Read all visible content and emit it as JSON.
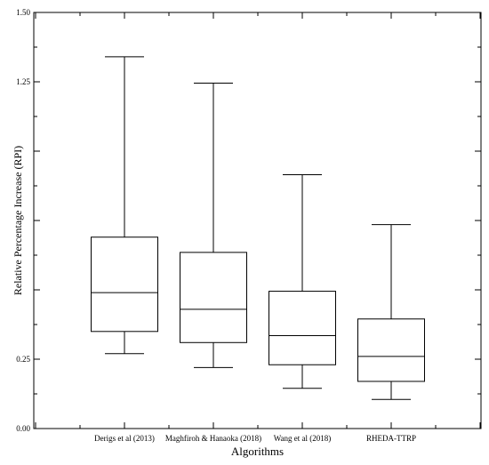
{
  "chart_data": {
    "type": "boxplot",
    "xlabel": "Algorithms",
    "ylabel": "Relative Percentage Increase (RPI)",
    "ylim": [
      0,
      1.5
    ],
    "y_ticks": [
      0,
      0.25,
      0.5,
      0.75,
      1.0,
      1.25,
      1.5
    ],
    "y_tick_labels": [
      "0.00",
      "0.25",
      "",
      "",
      "",
      "1.25",
      "1.50"
    ],
    "grid": false,
    "categories": [
      "Derigs et al (2013)",
      "Maghfiroh & Hanaoka (2018)",
      "Wang et al (2018)",
      "RHEDA-TTRP"
    ],
    "boxes": [
      {
        "min": 0.27,
        "q1": 0.35,
        "median": 0.49,
        "q3": 0.69,
        "max": 1.34
      },
      {
        "min": 0.22,
        "q1": 0.31,
        "median": 0.43,
        "q3": 0.635,
        "max": 1.245
      },
      {
        "min": 0.145,
        "q1": 0.23,
        "median": 0.335,
        "q3": 0.495,
        "max": 0.915
      },
      {
        "min": 0.105,
        "q1": 0.17,
        "median": 0.26,
        "q3": 0.395,
        "max": 0.735
      }
    ]
  }
}
